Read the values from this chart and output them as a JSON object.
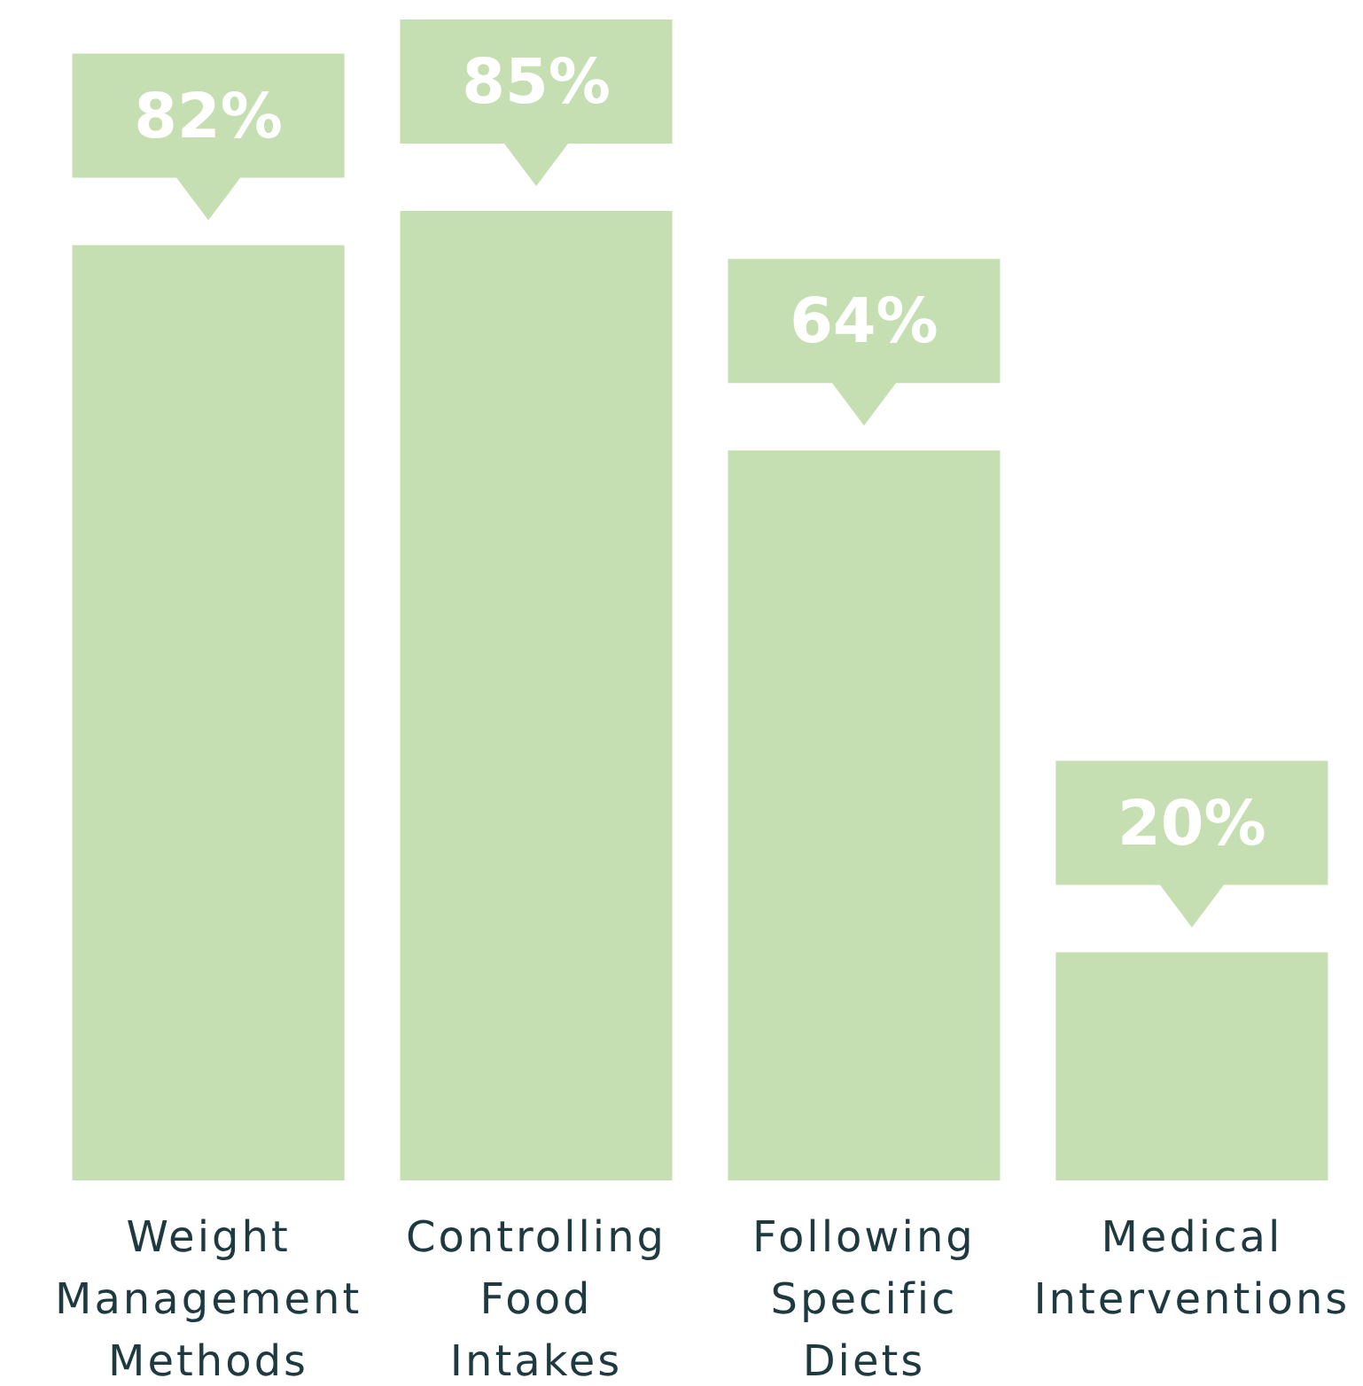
{
  "chart_data": {
    "type": "bar",
    "categories": [
      "Weight Management Methods",
      "Controlling Food Intakes",
      "Following Specific Diets",
      "Medical Interventions"
    ],
    "values": [
      82,
      85,
      64,
      20
    ],
    "value_labels": [
      "82%",
      "85%",
      "64%",
      "20%"
    ],
    "color": "#c5dfb2",
    "tick_labels": "x"
  }
}
